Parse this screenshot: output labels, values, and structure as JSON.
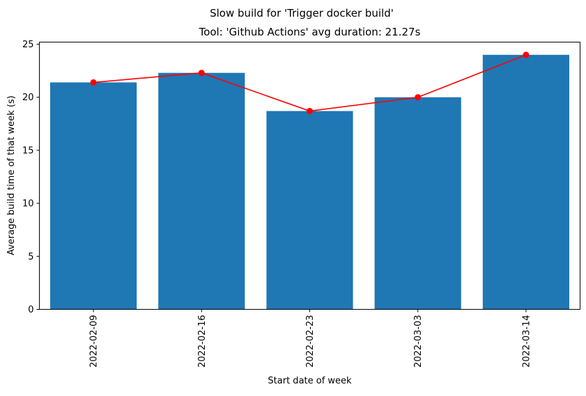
{
  "chart_data": {
    "type": "bar",
    "suptitle": "Slow build for 'Trigger docker build'",
    "title": "Tool: 'Github Actions' avg duration: 21.27s",
    "xlabel": "Start date of week",
    "ylabel": "Average build time of that week (s)",
    "categories": [
      "2022-02-09",
      "2022-02-16",
      "2022-02-23",
      "2022-03-03",
      "2022-03-14"
    ],
    "series": [
      {
        "type": "bar",
        "values": [
          21.4,
          22.3,
          18.7,
          20.0,
          24.0
        ],
        "color": "#1f77b4"
      },
      {
        "type": "line",
        "marker": "circle",
        "values": [
          21.4,
          22.3,
          18.7,
          20.0,
          24.0
        ],
        "color": "#ff0000"
      }
    ],
    "ylim": [
      0,
      25.2
    ],
    "yticks": [
      0,
      5,
      10,
      15,
      20,
      25
    ],
    "grid": false,
    "xtick_rotation": "vertical"
  }
}
